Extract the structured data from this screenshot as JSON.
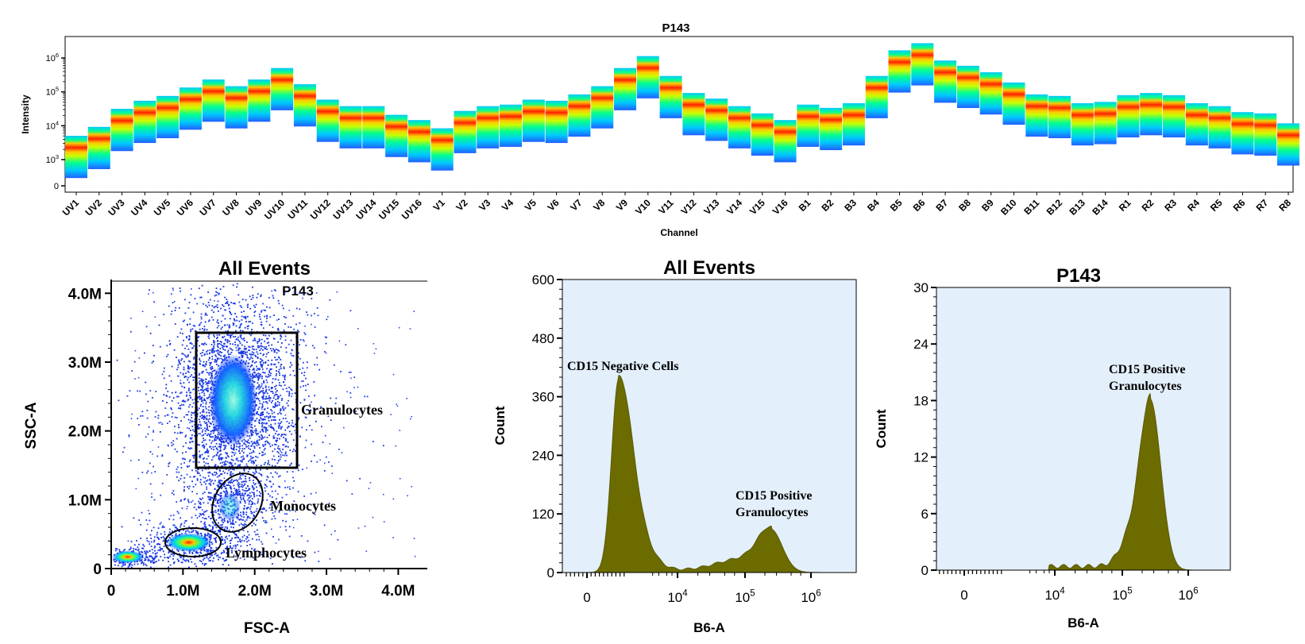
{
  "colors": {
    "histogram_fill": "#6b6b00",
    "plot_background": "#e3effa",
    "spectrum_scale": [
      "#2060ff",
      "#00c8ff",
      "#00ff90",
      "#c8ff00",
      "#ffc800",
      "#ff2000"
    ]
  },
  "chart_data": [
    {
      "type": "heatmap",
      "title": "P143",
      "xlabel": "Channel",
      "ylabel": "Intensity",
      "yscale": "log",
      "y_ticks": [
        "0",
        "10^3",
        "10^4",
        "10^5",
        "10^6"
      ],
      "categories": [
        "UV1",
        "UV2",
        "UV3",
        "UV4",
        "UV5",
        "UV6",
        "UV7",
        "UV8",
        "UV9",
        "UV10",
        "UV11",
        "UV12",
        "UV13",
        "UV14",
        "UV15",
        "UV16",
        "V1",
        "V2",
        "V3",
        "V4",
        "V5",
        "V6",
        "V7",
        "V8",
        "V9",
        "V10",
        "V11",
        "V12",
        "V13",
        "V14",
        "V15",
        "V16",
        "B1",
        "B2",
        "B3",
        "B4",
        "B5",
        "B6",
        "B7",
        "B8",
        "B9",
        "B10",
        "B11",
        "B12",
        "B13",
        "B14",
        "R1",
        "R2",
        "R3",
        "R4",
        "R5",
        "R6",
        "R7",
        "R8"
      ],
      "median_intensity": [
        1200,
        2200,
        7500,
        13000,
        18000,
        32000,
        55000,
        35000,
        55000,
        120000,
        40000,
        14000,
        9000,
        9000,
        5000,
        3500,
        2000,
        6500,
        9000,
        10000,
        14000,
        13000,
        20000,
        35000,
        120000,
        270000,
        70000,
        22000,
        15000,
        9000,
        5500,
        3500,
        10000,
        8000,
        11000,
        70000,
        400000,
        650000,
        200000,
        140000,
        90000,
        45000,
        20000,
        18000,
        11000,
        12000,
        19000,
        22000,
        19000,
        11000,
        9000,
        6000,
        5500,
        2800
      ],
      "grid": false
    },
    {
      "type": "scatter",
      "title": "All Events",
      "subtitle": "P143",
      "xlabel": "FSC-A",
      "ylabel": "SSC-A",
      "x_ticks": [
        "0",
        "1.0M",
        "2.0M",
        "3.0M",
        "4.0M"
      ],
      "y_ticks": [
        "0",
        "1.0M",
        "2.0M",
        "3.0M",
        "4.0M"
      ],
      "xlim": [
        0,
        4200000
      ],
      "ylim": [
        0,
        4200000
      ],
      "clusters": [
        {
          "label": "Granulocytes",
          "center": [
            1700000,
            2450000
          ],
          "gate_type": "rectangle",
          "gate_x": [
            1150000,
            2450000
          ],
          "gate_y": [
            1480000,
            3450000
          ]
        },
        {
          "label": "Monocytes",
          "center": [
            1650000,
            900000
          ],
          "gate_type": "ellipse"
        },
        {
          "label": "Lymphocytes",
          "center": [
            1080000,
            380000
          ],
          "gate_type": "ellipse"
        },
        {
          "label": "",
          "center": [
            230000,
            170000
          ],
          "gate_type": "none"
        }
      ],
      "grid": false
    },
    {
      "type": "area",
      "title": "All Events",
      "xlabel": "B6-A",
      "ylabel": "Count",
      "xscale": "biexponential",
      "x_ticks": [
        "0",
        "10^4",
        "10^5",
        "10^6"
      ],
      "y_ticks": [
        "0",
        "120",
        "240",
        "360",
        "480",
        "600"
      ],
      "ylim": [
        0,
        600
      ],
      "peaks": [
        {
          "label": "CD15 Negative Cells",
          "x": 200,
          "count": 385
        },
        {
          "label": "CD15 Positive Granulocytes",
          "x": 250000,
          "count": 80
        }
      ],
      "grid": false
    },
    {
      "type": "area",
      "title": "P143",
      "xlabel": "B6-A",
      "ylabel": "Count",
      "xscale": "biexponential",
      "x_ticks": [
        "0",
        "10^4",
        "10^5",
        "10^6"
      ],
      "y_ticks": [
        "0",
        "6",
        "12",
        "18",
        "24",
        "30"
      ],
      "ylim": [
        0,
        30
      ],
      "peaks": [
        {
          "label": "CD15 Positive Granulocytes",
          "x": 270000,
          "count": 17.5
        }
      ],
      "grid": false
    }
  ]
}
